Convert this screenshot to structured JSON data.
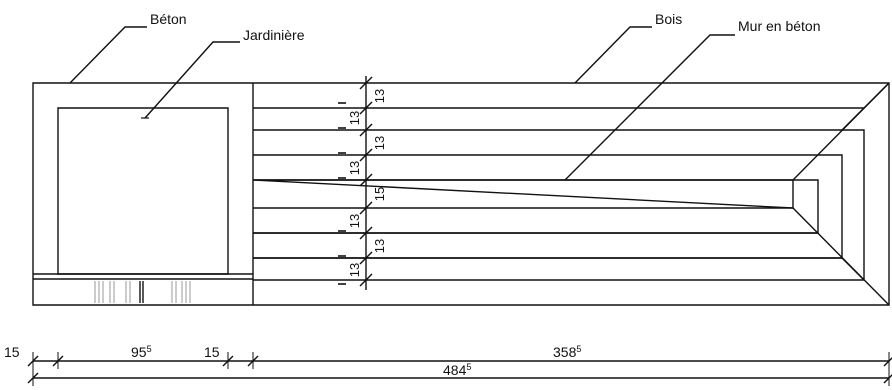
{
  "labels": {
    "beton": "Béton",
    "jardiniere": "Jardinière",
    "bois": "Bois",
    "mur_en_beton": "Mur en béton"
  },
  "vertical_dims": [
    "13",
    "13",
    "13",
    "13",
    "15",
    "13",
    "13",
    "13"
  ],
  "horizontal_dims": {
    "d1": "15",
    "d2_main": "95",
    "d2_sup": "5",
    "d3": "15",
    "d4_main": "358",
    "d4_sup": "5",
    "total_main": "484",
    "total_sup": "5"
  }
}
